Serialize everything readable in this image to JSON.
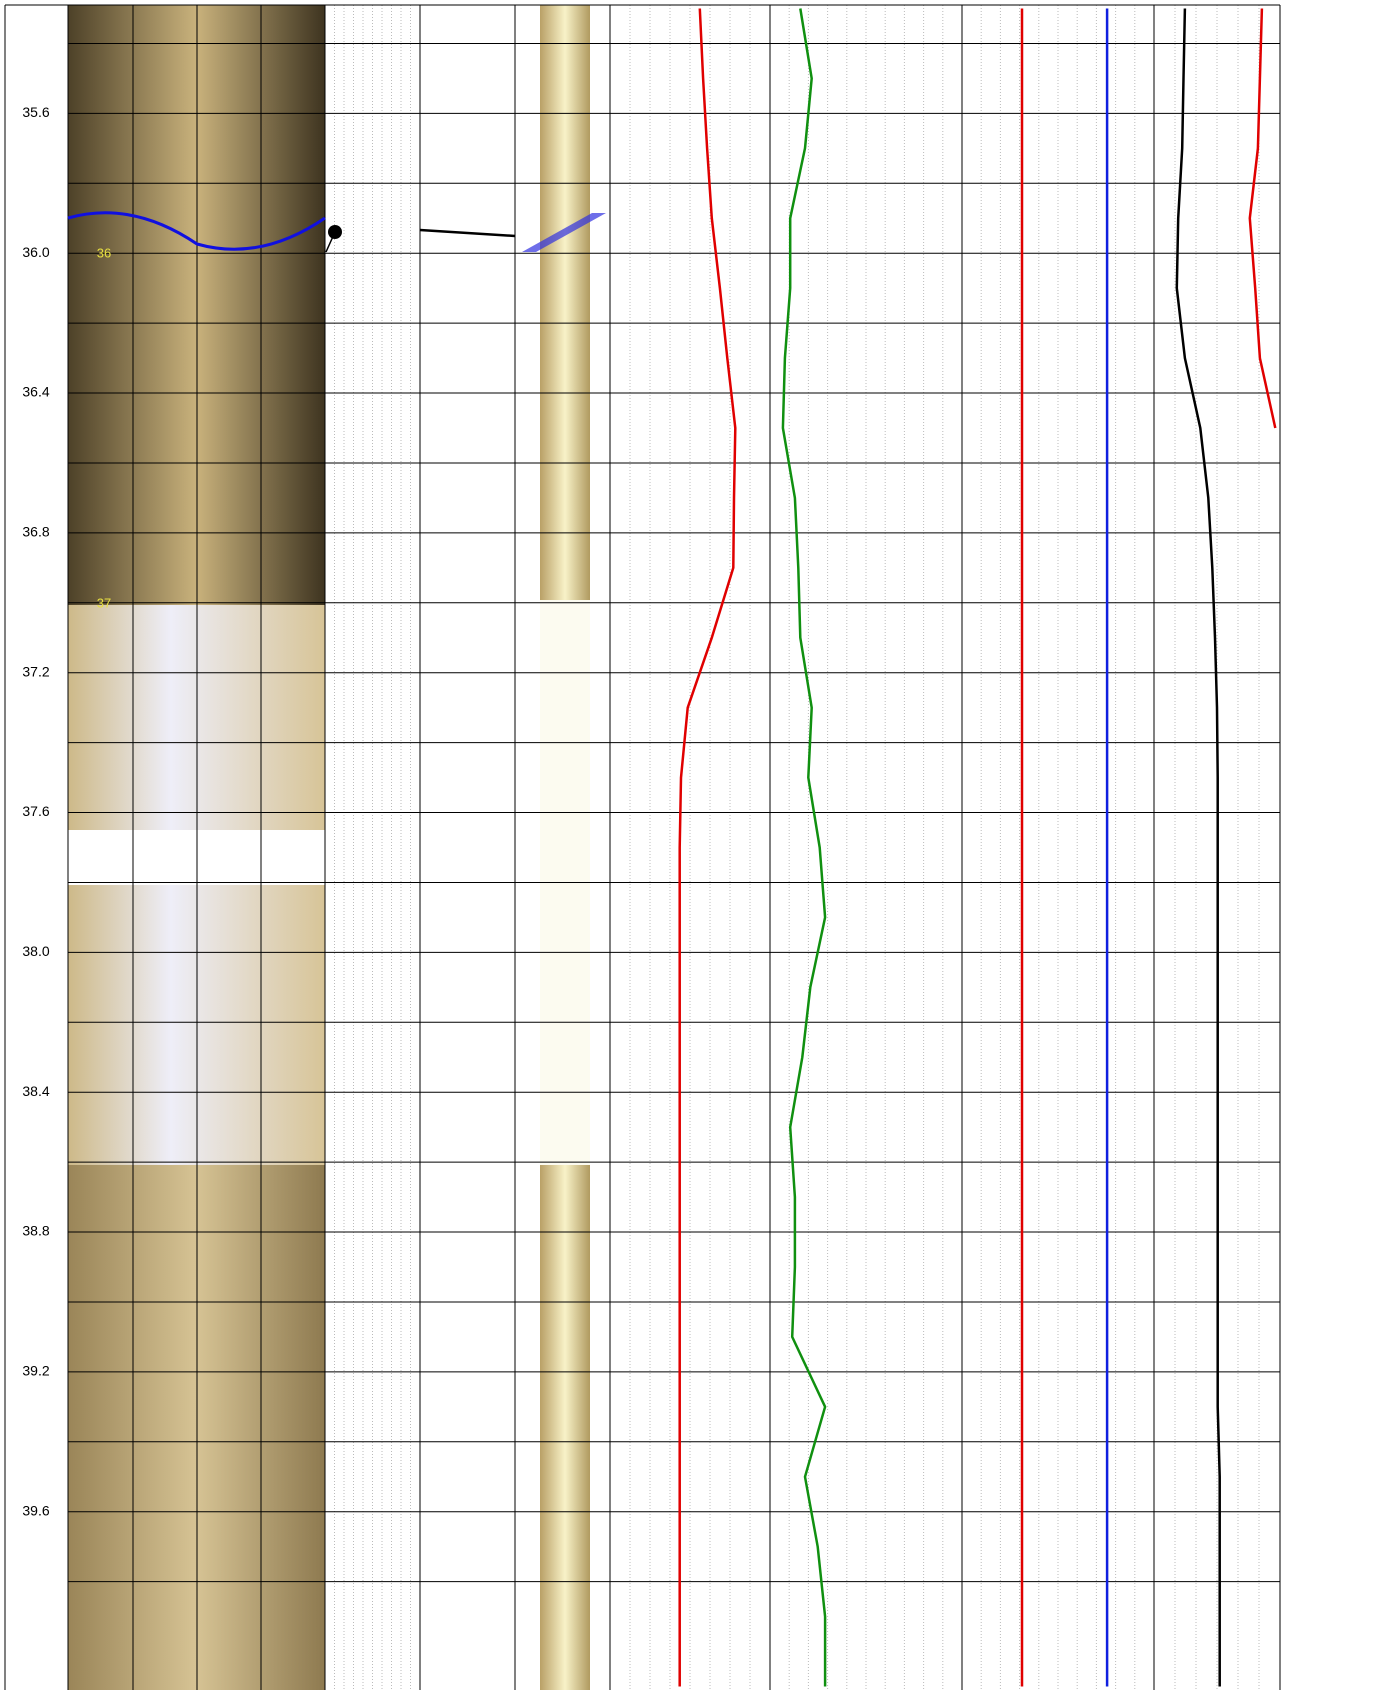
{
  "chart_data": {
    "type": "well-log",
    "ylim": [
      35.29,
      40.11
    ],
    "yticks": [
      35.6,
      {
        "value": 36,
        "label": "36.0"
      },
      36.4,
      36.8,
      37.2,
      37.6,
      {
        "value": 38,
        "label": "38.0"
      },
      38.4,
      38.8,
      39.2,
      39.6
    ],
    "yminor": [
      35.4,
      35.8,
      36.2,
      36.6,
      37,
      37.4,
      37.8,
      38.2,
      38.6,
      39,
      39.4,
      39.8
    ],
    "image_labels": [
      "36",
      "37"
    ],
    "xlim": [
      0,
      100
    ],
    "depth": [
      35.3,
      35.5,
      35.7,
      35.9,
      36.1,
      36.3,
      36.5,
      36.7,
      36.9,
      37.1,
      37.3,
      37.5,
      37.7,
      37.9,
      38.1,
      38.3,
      38.5,
      38.7,
      38.9,
      39.1,
      39.3,
      39.5,
      39.7,
      39.9,
      40.1
    ],
    "series": [
      {
        "color": "#e00000",
        "values": [
          13.4,
          13.9,
          14.5,
          15.2,
          16.4,
          17.5,
          18.7,
          18.5,
          18.4,
          15.2,
          11.6,
          10.6,
          10.4,
          10.4,
          10.4,
          10.4,
          10.4,
          10.4,
          10.4,
          10.4,
          10.4,
          10.4,
          10.4,
          10.4,
          10.4
        ]
      },
      {
        "color": "#109010",
        "values": [
          28.4,
          30.1,
          29.1,
          26.9,
          26.9,
          26.1,
          25.8,
          27.6,
          28.1,
          28.4,
          30.1,
          29.6,
          31.3,
          32.1,
          29.9,
          28.7,
          26.9,
          27.6,
          27.6,
          27.2,
          32.1,
          29.1,
          31.0,
          32.1,
          32.1
        ]
      },
      {
        "color": "#e00000",
        "values": [
          61.5,
          61.5,
          61.5,
          61.5,
          61.5,
          61.5,
          61.5,
          61.5,
          61.5,
          61.5,
          61.5,
          61.5,
          61.5,
          61.5,
          61.5,
          61.5,
          61.5,
          61.5,
          61.5,
          61.5,
          61.5,
          61.5,
          61.5,
          61.5,
          61.5
        ]
      },
      {
        "color": "#1020e0",
        "values": [
          74.2,
          74.2,
          74.2,
          74.2,
          74.2,
          74.2,
          74.2,
          74.2,
          74.2,
          74.2,
          74.2,
          74.2,
          74.2,
          74.2,
          74.2,
          74.2,
          74.2,
          74.2,
          74.2,
          74.2,
          74.2,
          74.2,
          74.2,
          74.2,
          74.2
        ]
      },
      {
        "color": "#000000",
        "values": [
          85.8,
          85.6,
          85.4,
          84.8,
          84.6,
          85.8,
          88.1,
          89.3,
          89.9,
          90.3,
          90.6,
          90.7,
          90.7,
          90.7,
          90.7,
          90.7,
          90.7,
          90.7,
          90.7,
          90.7,
          90.7,
          91.0,
          91.0,
          91.0,
          91.0
        ]
      },
      {
        "color": "#e00000",
        "values": [
          97.3,
          97.0,
          96.7,
          95.5,
          96.3,
          97.0,
          99.3,
          null,
          null,
          null,
          null,
          null,
          null,
          null,
          null,
          null,
          null,
          null,
          null,
          null,
          null,
          null,
          null,
          null,
          null
        ]
      }
    ]
  }
}
